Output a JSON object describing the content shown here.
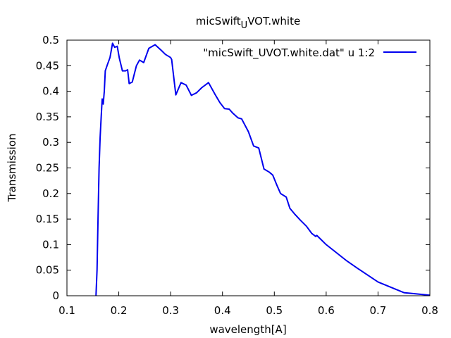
{
  "chart_data": {
    "type": "line",
    "title": {
      "main": "micSwift",
      "sub": "U",
      "rest": "VOT.white"
    },
    "xlabel": "wavelength[A]",
    "ylabel": "Transmission",
    "xlim": [
      0.1,
      0.8
    ],
    "ylim": [
      0,
      0.5
    ],
    "xticks": [
      0.1,
      0.2,
      0.3,
      0.4,
      0.5,
      0.6,
      0.7,
      0.8
    ],
    "yticks": [
      0,
      0.05,
      0.1,
      0.15,
      0.2,
      0.25,
      0.3,
      0.35,
      0.4,
      0.45,
      0.5
    ],
    "xtick_labels": [
      "0.1",
      "0.2",
      "0.3",
      "0.4",
      "0.5",
      "0.6",
      "0.7",
      "0.8"
    ],
    "ytick_labels": [
      "0",
      "0.05",
      "0.1",
      "0.15",
      "0.2",
      "0.25",
      "0.3",
      "0.35",
      "0.4",
      "0.45",
      "0.5"
    ],
    "grid": false,
    "legend_position": "top-right",
    "series": [
      {
        "name": "\"micSwift_UVOT.white.dat\" u 1:2",
        "color": "#0000ee",
        "x": [
          0.156,
          0.158,
          0.16,
          0.162,
          0.164,
          0.166,
          0.168,
          0.17,
          0.172,
          0.174,
          0.178,
          0.183,
          0.188,
          0.192,
          0.197,
          0.201,
          0.207,
          0.213,
          0.217,
          0.22,
          0.226,
          0.234,
          0.24,
          0.248,
          0.258,
          0.27,
          0.282,
          0.29,
          0.3,
          0.302,
          0.31,
          0.32,
          0.33,
          0.34,
          0.35,
          0.36,
          0.373,
          0.385,
          0.395,
          0.404,
          0.413,
          0.42,
          0.43,
          0.437,
          0.45,
          0.46,
          0.47,
          0.48,
          0.49,
          0.497,
          0.505,
          0.512,
          0.523,
          0.53,
          0.54,
          0.55,
          0.562,
          0.572,
          0.58,
          0.582,
          0.585,
          0.59,
          0.6,
          0.62,
          0.64,
          0.66,
          0.7,
          0.75,
          0.8
        ],
        "y": [
          0.0,
          0.05,
          0.15,
          0.25,
          0.31,
          0.35,
          0.385,
          0.375,
          0.4,
          0.44,
          0.452,
          0.466,
          0.494,
          0.486,
          0.488,
          0.465,
          0.44,
          0.44,
          0.442,
          0.415,
          0.418,
          0.45,
          0.461,
          0.456,
          0.484,
          0.491,
          0.48,
          0.472,
          0.466,
          0.462,
          0.393,
          0.417,
          0.412,
          0.392,
          0.397,
          0.407,
          0.417,
          0.395,
          0.378,
          0.366,
          0.365,
          0.357,
          0.348,
          0.346,
          0.321,
          0.293,
          0.289,
          0.248,
          0.242,
          0.236,
          0.216,
          0.2,
          0.193,
          0.171,
          0.159,
          0.148,
          0.136,
          0.122,
          0.116,
          0.118,
          0.115,
          0.11,
          0.1,
          0.084,
          0.068,
          0.054,
          0.027,
          0.006,
          0.001
        ]
      }
    ]
  }
}
